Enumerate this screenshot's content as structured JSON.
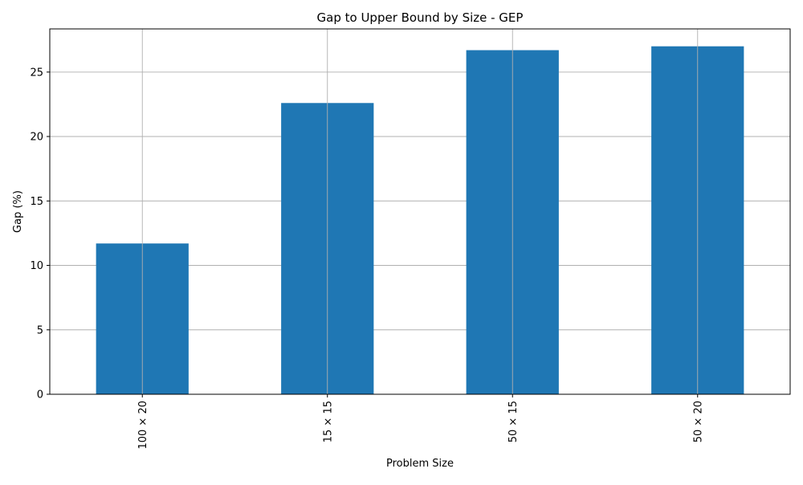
{
  "chart_data": {
    "type": "bar",
    "title": "Gap to Upper Bound by Size - GEP",
    "xlabel": "Problem Size",
    "ylabel": "Gap (%)",
    "categories": [
      "100 × 20",
      "15 × 15",
      "50 × 15",
      "50 × 20"
    ],
    "values": [
      11.7,
      22.6,
      26.7,
      27.0
    ],
    "ylim": [
      0,
      28.35
    ],
    "yticks": [
      0,
      5,
      10,
      15,
      20,
      25
    ],
    "grid": true,
    "bar_color": "#1f77b4",
    "x_tick_rotation": "vertical"
  }
}
